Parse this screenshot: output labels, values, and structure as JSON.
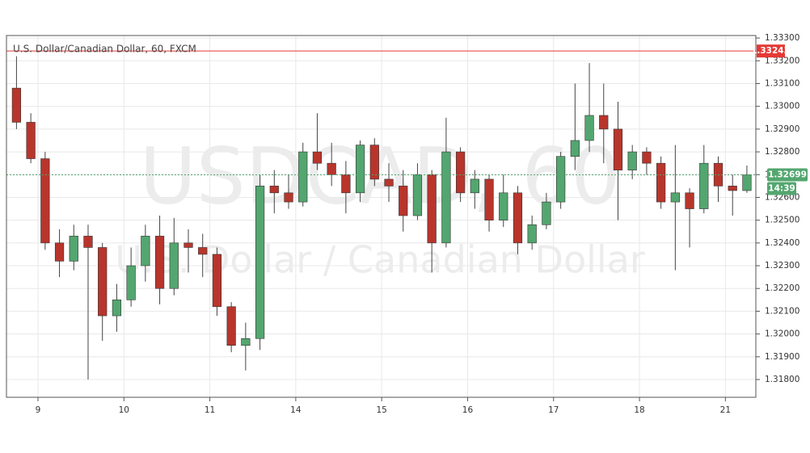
{
  "chart_data": {
    "type": "candlestick",
    "title": "U.S. Dollar/Canadian Dollar, 60, FXCM",
    "watermark": [
      "USDCAD, 60",
      "U.S. Dollar / Canadian Dollar"
    ],
    "x": [
      -6,
      -2,
      2,
      6,
      10,
      14,
      18,
      22,
      26,
      30,
      34,
      38,
      42,
      46,
      50,
      54,
      58,
      62,
      66,
      70,
      74,
      78,
      82,
      86,
      90,
      94,
      98,
      102,
      106,
      110,
      114,
      118,
      122,
      126,
      130,
      134,
      138,
      142,
      146,
      150,
      154,
      158,
      162,
      166,
      170,
      174,
      178,
      182,
      186,
      190,
      194,
      198
    ],
    "open": [
      1.3308,
      1.3293,
      1.3277,
      1.324,
      1.3232,
      1.3243,
      1.3238,
      1.3208,
      1.3215,
      1.323,
      1.3243,
      1.322,
      1.324,
      1.3238,
      1.3235,
      1.3212,
      1.3195,
      1.3198,
      1.3265,
      1.3262,
      1.3258,
      1.328,
      1.3275,
      1.327,
      1.3262,
      1.3283,
      1.3268,
      1.3265,
      1.3252,
      1.327,
      1.324,
      1.328,
      1.3262,
      1.3268,
      1.325,
      1.3262,
      1.324,
      1.3248,
      1.3258,
      1.3278,
      1.3285,
      1.3296,
      1.329,
      1.3272,
      1.328,
      1.3275,
      1.3258,
      1.3262,
      1.3255,
      1.3275,
      1.3265,
      1.3263
    ],
    "high": [
      1.3322,
      1.3297,
      1.328,
      1.3246,
      1.3248,
      1.3248,
      1.324,
      1.3222,
      1.3238,
      1.3248,
      1.3252,
      1.3251,
      1.3246,
      1.3244,
      1.3238,
      1.3214,
      1.3205,
      1.327,
      1.3272,
      1.327,
      1.3284,
      1.3297,
      1.3284,
      1.3276,
      1.3285,
      1.3286,
      1.3275,
      1.3272,
      1.3275,
      1.3272,
      1.3295,
      1.3282,
      1.3272,
      1.327,
      1.327,
      1.3265,
      1.3252,
      1.3262,
      1.328,
      1.331,
      1.3319,
      1.331,
      1.3302,
      1.3283,
      1.3282,
      1.3278,
      1.3283,
      1.3264,
      1.3283,
      1.3278,
      1.327,
      1.3274
    ],
    "low": [
      1.329,
      1.3275,
      1.3237,
      1.3225,
      1.3228,
      1.318,
      1.3197,
      1.3201,
      1.3212,
      1.3223,
      1.3213,
      1.3217,
      1.3227,
      1.3225,
      1.3208,
      1.3192,
      1.3184,
      1.3193,
      1.3253,
      1.3255,
      1.3256,
      1.3272,
      1.3265,
      1.3253,
      1.3258,
      1.3265,
      1.3258,
      1.3245,
      1.325,
      1.3227,
      1.3238,
      1.3258,
      1.3255,
      1.3245,
      1.3247,
      1.3235,
      1.3237,
      1.3246,
      1.3255,
      1.3272,
      1.328,
      1.3275,
      1.325,
      1.3268,
      1.327,
      1.3255,
      1.3228,
      1.3238,
      1.3253,
      1.3258,
      1.3252,
      1.3262
    ],
    "close": [
      1.3293,
      1.3277,
      1.324,
      1.3232,
      1.3243,
      1.3238,
      1.3208,
      1.3215,
      1.323,
      1.3243,
      1.322,
      1.324,
      1.3238,
      1.3235,
      1.3212,
      1.3195,
      1.3198,
      1.3265,
      1.3262,
      1.3258,
      1.328,
      1.3275,
      1.327,
      1.3262,
      1.3283,
      1.3268,
      1.3265,
      1.3252,
      1.327,
      1.324,
      1.328,
      1.3262,
      1.3268,
      1.325,
      1.3262,
      1.324,
      1.3248,
      1.3258,
      1.3278,
      1.3285,
      1.3296,
      1.329,
      1.3272,
      1.328,
      1.3275,
      1.3258,
      1.3262,
      1.3255,
      1.3275,
      1.3265,
      1.3263,
      1.32699
    ],
    "up_color": "#53a66f",
    "down_color": "#b8352c",
    "xlim": [
      -8.8,
      200.5
    ],
    "ylim": [
      1.31722,
      1.33311
    ],
    "xticks": [
      {
        "value": 0,
        "label": "9"
      },
      {
        "value": 24,
        "label": "10"
      },
      {
        "value": 48,
        "label": "11"
      },
      {
        "value": 72,
        "label": "14"
      },
      {
        "value": 96,
        "label": "15"
      },
      {
        "value": 120,
        "label": "16"
      },
      {
        "value": 144,
        "label": "17"
      },
      {
        "value": 168,
        "label": "18"
      },
      {
        "value": 192,
        "label": "21"
      }
    ],
    "yticks": [
      {
        "value": 1.318,
        "label": "1.31800"
      },
      {
        "value": 1.319,
        "label": "1.31900"
      },
      {
        "value": 1.32,
        "label": "1.32000"
      },
      {
        "value": 1.321,
        "label": "1.32100"
      },
      {
        "value": 1.322,
        "label": "1.32200"
      },
      {
        "value": 1.323,
        "label": "1.32300"
      },
      {
        "value": 1.324,
        "label": "1.32400"
      },
      {
        "value": 1.325,
        "label": "1.32500"
      },
      {
        "value": 1.326,
        "label": "1.32600"
      },
      {
        "value": 1.327,
        "label": "1.32700"
      },
      {
        "value": 1.328,
        "label": "1.32800"
      },
      {
        "value": 1.329,
        "label": "1.32900"
      },
      {
        "value": 1.33,
        "label": "1.33000"
      },
      {
        "value": 1.331,
        "label": "1.33100"
      },
      {
        "value": 1.332,
        "label": "1.33200"
      },
      {
        "value": 1.333,
        "label": "1.33300"
      }
    ],
    "grid": true,
    "level_line": {
      "value": 1.33243,
      "color": "#e53935"
    },
    "last_price": {
      "value": 1.32699,
      "color": "#53a66f"
    },
    "countdown": "14:39"
  }
}
